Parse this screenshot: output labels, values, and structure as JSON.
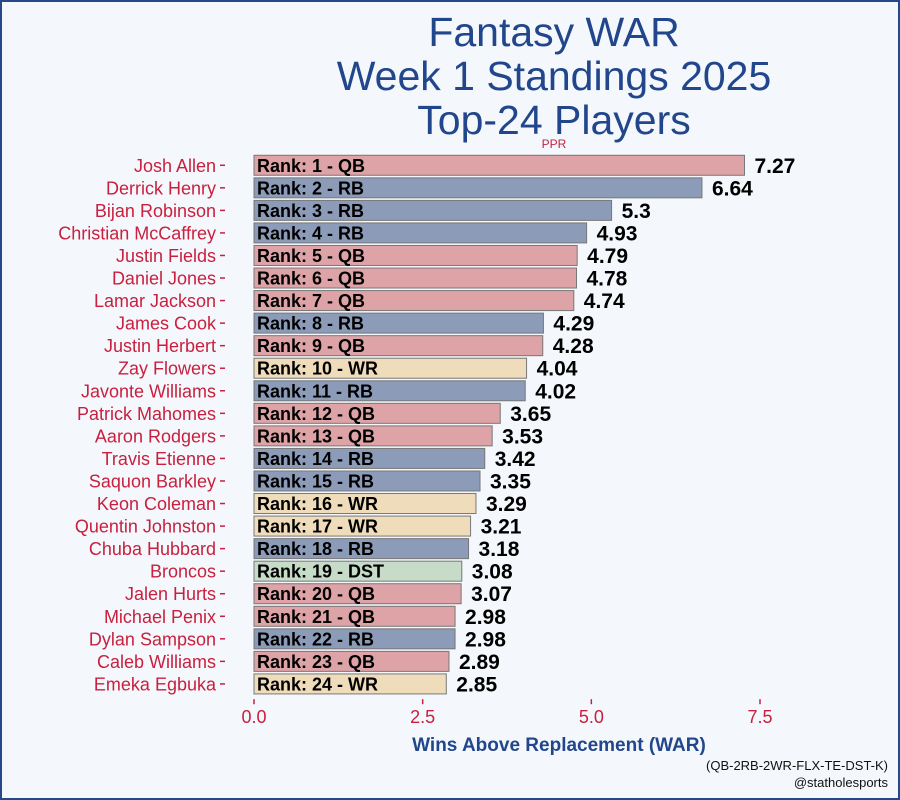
{
  "chart_data": {
    "type": "bar",
    "orientation": "horizontal",
    "title_lines": [
      "Fantasy WAR",
      "Week 1 Standings 2025",
      "Top-24 Players"
    ],
    "subtitle": "PPR",
    "xlabel": "Wins Above Replacement (WAR)",
    "ylabel": "",
    "xlim": [
      0,
      7.5
    ],
    "xticks": [
      "0.0",
      "2.5",
      "5.0",
      "7.5"
    ],
    "grid": false,
    "position_colors": {
      "QB": "#dea3a6",
      "RB": "#8c9bb7",
      "WR": "#efdcba",
      "DST": "#c6dcc9"
    },
    "categories": [
      "Josh Allen",
      "Derrick Henry",
      "Bijan Robinson",
      "Christian McCaffrey",
      "Justin Fields",
      "Daniel Jones",
      "Lamar Jackson",
      "James Cook",
      "Justin Herbert",
      "Zay Flowers",
      "Javonte Williams",
      "Patrick Mahomes",
      "Aaron Rodgers",
      "Travis Etienne",
      "Saquon Barkley",
      "Keon Coleman",
      "Quentin Johnston",
      "Chuba Hubbard",
      "Broncos",
      "Jalen Hurts",
      "Michael Penix",
      "Dylan Sampson",
      "Caleb Williams",
      "Emeka Egbuka"
    ],
    "values": [
      7.27,
      6.64,
      5.3,
      4.93,
      4.79,
      4.78,
      4.74,
      4.29,
      4.28,
      4.04,
      4.02,
      3.65,
      3.53,
      3.42,
      3.35,
      3.29,
      3.21,
      3.18,
      3.08,
      3.07,
      2.98,
      2.98,
      2.89,
      2.85
    ],
    "value_labels": [
      "7.27",
      "6.64",
      "5.3",
      "4.93",
      "4.79",
      "4.78",
      "4.74",
      "4.29",
      "4.28",
      "4.04",
      "4.02",
      "3.65",
      "3.53",
      "3.42",
      "3.35",
      "3.29",
      "3.21",
      "3.18",
      "3.08",
      "3.07",
      "2.98",
      "2.98",
      "2.89",
      "2.85"
    ],
    "positions": [
      "QB",
      "RB",
      "RB",
      "RB",
      "QB",
      "QB",
      "QB",
      "RB",
      "QB",
      "WR",
      "RB",
      "QB",
      "QB",
      "RB",
      "RB",
      "WR",
      "WR",
      "RB",
      "DST",
      "QB",
      "QB",
      "RB",
      "QB",
      "WR"
    ],
    "bar_labels": [
      "Rank: 1 - QB",
      "Rank: 2 - RB",
      "Rank: 3 - RB",
      "Rank: 4 - RB",
      "Rank: 5 - QB",
      "Rank: 6 - QB",
      "Rank: 7 - QB",
      "Rank: 8 - RB",
      "Rank: 9 - QB",
      "Rank: 10 - WR",
      "Rank: 11 - RB",
      "Rank: 12 - QB",
      "Rank: 13 - QB",
      "Rank: 14 - RB",
      "Rank: 15 - RB",
      "Rank: 16 - WR",
      "Rank: 17 - WR",
      "Rank: 18 - RB",
      "Rank: 19 - DST",
      "Rank: 20 - QB",
      "Rank: 21 - QB",
      "Rank: 22 - RB",
      "Rank: 23 - QB",
      "Rank: 24 - WR"
    ]
  },
  "footnotes": [
    "(QB-2RB-2WR-FLX-TE-DST-K)",
    "@statholesports"
  ]
}
